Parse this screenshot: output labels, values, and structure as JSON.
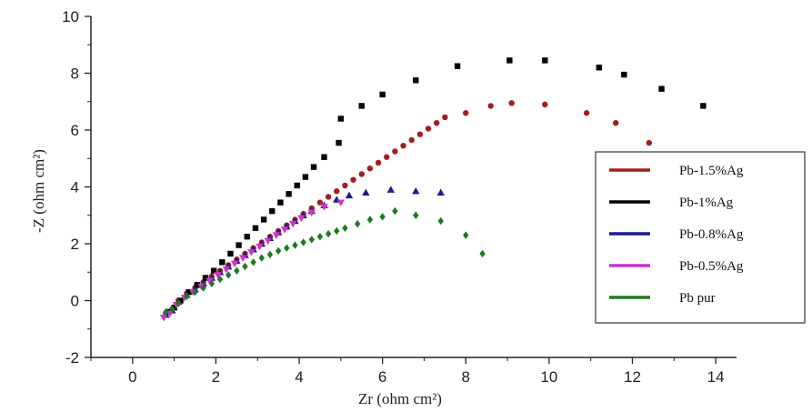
{
  "chart_data": {
    "type": "scatter",
    "xlabel": "Zr (ohm cm²)",
    "ylabel": "-Z (ohm cm²)",
    "xlim": [
      -1,
      14.5
    ],
    "ylim": [
      -2,
      10
    ],
    "xticks": [
      0,
      2,
      4,
      6,
      8,
      10,
      12,
      14
    ],
    "yticks": [
      -2,
      0,
      2,
      4,
      6,
      8,
      10
    ],
    "grid": false,
    "legend_position": "right",
    "series": [
      {
        "name": "Pb-1.5%Ag",
        "color": "#a11f1f",
        "marker": "circle",
        "points": [
          [
            0.8,
            -0.45
          ],
          [
            0.95,
            -0.3
          ],
          [
            1.1,
            0.0
          ],
          [
            1.3,
            0.25
          ],
          [
            1.5,
            0.45
          ],
          [
            1.7,
            0.65
          ],
          [
            1.9,
            0.85
          ],
          [
            2.1,
            1.05
          ],
          [
            2.3,
            1.25
          ],
          [
            2.5,
            1.45
          ],
          [
            2.7,
            1.65
          ],
          [
            2.9,
            1.85
          ],
          [
            3.1,
            2.05
          ],
          [
            3.3,
            2.25
          ],
          [
            3.5,
            2.45
          ],
          [
            3.7,
            2.65
          ],
          [
            3.9,
            2.85
          ],
          [
            4.1,
            3.05
          ],
          [
            4.3,
            3.25
          ],
          [
            4.5,
            3.45
          ],
          [
            4.7,
            3.65
          ],
          [
            4.9,
            3.85
          ],
          [
            5.1,
            4.05
          ],
          [
            5.3,
            4.25
          ],
          [
            5.5,
            4.45
          ],
          [
            5.7,
            4.65
          ],
          [
            5.9,
            4.85
          ],
          [
            6.1,
            5.05
          ],
          [
            6.3,
            5.25
          ],
          [
            6.5,
            5.45
          ],
          [
            6.7,
            5.65
          ],
          [
            6.9,
            5.85
          ],
          [
            7.1,
            6.05
          ],
          [
            7.3,
            6.25
          ],
          [
            7.5,
            6.45
          ],
          [
            8.0,
            6.6
          ],
          [
            8.6,
            6.85
          ],
          [
            9.1,
            6.95
          ],
          [
            9.9,
            6.9
          ],
          [
            10.9,
            6.6
          ],
          [
            11.6,
            6.25
          ],
          [
            12.4,
            5.55
          ]
        ]
      },
      {
        "name": "Pb-1%Ag",
        "color": "#000000",
        "marker": "square",
        "points": [
          [
            0.85,
            -0.4
          ],
          [
            1.0,
            -0.25
          ],
          [
            1.15,
            0.0
          ],
          [
            1.35,
            0.3
          ],
          [
            1.55,
            0.55
          ],
          [
            1.75,
            0.8
          ],
          [
            1.95,
            1.05
          ],
          [
            2.15,
            1.35
          ],
          [
            2.35,
            1.65
          ],
          [
            2.55,
            1.95
          ],
          [
            2.75,
            2.25
          ],
          [
            2.95,
            2.55
          ],
          [
            3.15,
            2.85
          ],
          [
            3.35,
            3.15
          ],
          [
            3.55,
            3.45
          ],
          [
            3.75,
            3.75
          ],
          [
            3.95,
            4.05
          ],
          [
            4.15,
            4.35
          ],
          [
            4.35,
            4.7
          ],
          [
            4.6,
            5.05
          ],
          [
            4.95,
            5.55
          ],
          [
            5.0,
            6.4
          ],
          [
            5.5,
            6.85
          ],
          [
            6.0,
            7.25
          ],
          [
            6.8,
            7.75
          ],
          [
            7.8,
            8.25
          ],
          [
            9.05,
            8.45
          ],
          [
            9.9,
            8.45
          ],
          [
            11.2,
            8.2
          ],
          [
            11.8,
            7.95
          ],
          [
            12.7,
            7.45
          ],
          [
            13.7,
            6.85
          ]
        ]
      },
      {
        "name": "Pb-0.8%Ag",
        "color": "#1c1c8c",
        "marker": "triangle-up",
        "points": [
          [
            0.8,
            -0.5
          ],
          [
            0.95,
            -0.35
          ],
          [
            1.1,
            -0.05
          ],
          [
            1.3,
            0.2
          ],
          [
            1.5,
            0.4
          ],
          [
            1.7,
            0.6
          ],
          [
            1.9,
            0.8
          ],
          [
            2.1,
            1.0
          ],
          [
            2.3,
            1.2
          ],
          [
            2.5,
            1.4
          ],
          [
            2.7,
            1.6
          ],
          [
            2.9,
            1.8
          ],
          [
            3.1,
            2.0
          ],
          [
            3.3,
            2.2
          ],
          [
            3.5,
            2.4
          ],
          [
            3.7,
            2.6
          ],
          [
            3.9,
            2.8
          ],
          [
            4.1,
            3.0
          ],
          [
            4.3,
            3.15
          ],
          [
            4.6,
            3.35
          ],
          [
            4.9,
            3.55
          ],
          [
            5.2,
            3.7
          ],
          [
            5.6,
            3.8
          ],
          [
            6.2,
            3.9
          ],
          [
            6.8,
            3.85
          ],
          [
            7.4,
            3.8
          ]
        ]
      },
      {
        "name": "Pb-0.5%Ag",
        "color": "#cc33cc",
        "marker": "triangle-down",
        "points": [
          [
            0.75,
            -0.6
          ],
          [
            0.9,
            -0.45
          ],
          [
            1.05,
            -0.15
          ],
          [
            1.25,
            0.1
          ],
          [
            1.45,
            0.3
          ],
          [
            1.65,
            0.5
          ],
          [
            1.85,
            0.7
          ],
          [
            2.05,
            0.9
          ],
          [
            2.25,
            1.1
          ],
          [
            2.45,
            1.3
          ],
          [
            2.65,
            1.5
          ],
          [
            2.85,
            1.7
          ],
          [
            3.05,
            1.9
          ],
          [
            3.25,
            2.1
          ],
          [
            3.45,
            2.3
          ],
          [
            3.65,
            2.5
          ],
          [
            3.85,
            2.7
          ],
          [
            4.05,
            2.9
          ],
          [
            4.3,
            3.1
          ],
          [
            4.6,
            3.3
          ],
          [
            5.0,
            3.45
          ]
        ]
      },
      {
        "name": "Pb pur",
        "color": "#1f7a1f",
        "marker": "diamond",
        "points": [
          [
            0.8,
            -0.4
          ],
          [
            0.95,
            -0.3
          ],
          [
            1.1,
            -0.1
          ],
          [
            1.3,
            0.15
          ],
          [
            1.5,
            0.3
          ],
          [
            1.7,
            0.45
          ],
          [
            1.9,
            0.6
          ],
          [
            2.1,
            0.75
          ],
          [
            2.3,
            0.9
          ],
          [
            2.5,
            1.05
          ],
          [
            2.7,
            1.2
          ],
          [
            2.9,
            1.35
          ],
          [
            3.1,
            1.5
          ],
          [
            3.3,
            1.62
          ],
          [
            3.5,
            1.75
          ],
          [
            3.7,
            1.85
          ],
          [
            3.9,
            1.95
          ],
          [
            4.1,
            2.05
          ],
          [
            4.3,
            2.15
          ],
          [
            4.5,
            2.25
          ],
          [
            4.7,
            2.35
          ],
          [
            4.9,
            2.45
          ],
          [
            5.1,
            2.55
          ],
          [
            5.4,
            2.7
          ],
          [
            5.7,
            2.85
          ],
          [
            6.0,
            2.95
          ],
          [
            6.3,
            3.15
          ],
          [
            6.8,
            3.0
          ],
          [
            7.4,
            2.8
          ],
          [
            8.0,
            2.3
          ],
          [
            8.4,
            1.65
          ]
        ]
      }
    ]
  }
}
